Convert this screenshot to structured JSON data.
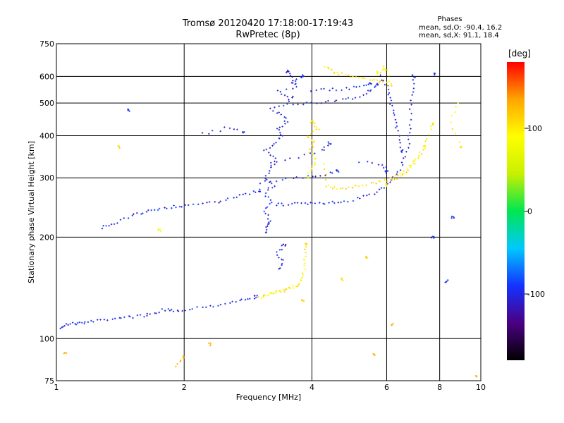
{
  "header": {
    "title": "Tromsø 20120420 17:18:00-17:19:43",
    "subtitle": "RwPretec (8p)",
    "phases_title": "Phases",
    "phases_o": "mean, sd,O: -90.4, 16.2",
    "phases_x": "mean, sd,X:  91.1, 18.4"
  },
  "chart_data": {
    "type": "scatter",
    "title": "Tromsø 20120420 17:18:00-17:19:43",
    "subtitle": "RwPretec (8p)",
    "xlabel": "Frequency [MHz]",
    "ylabel": "Stationary phase Virtual Height [km]",
    "x_scale": "log",
    "y_scale": "log",
    "xlim": [
      1,
      10
    ],
    "ylim": [
      75,
      750
    ],
    "x_ticks": [
      1,
      2,
      4,
      6,
      8,
      10
    ],
    "y_ticks": [
      75,
      100,
      200,
      300,
      400,
      500,
      600,
      750
    ],
    "grid": true,
    "colorbar": {
      "label": "[deg]",
      "range": [
        -180,
        180
      ],
      "ticks": [
        100,
        0,
        -100
      ],
      "colors": [
        "#000000",
        "#4b0082",
        "#1432ff",
        "#00c8ff",
        "#00e650",
        "#c8f000",
        "#ffff00",
        "#ffa500",
        "#ff0000"
      ]
    },
    "series": [
      {
        "name": "O",
        "points": [
          [
            1.03,
            108
          ],
          [
            1.05,
            110
          ],
          [
            1.1,
            111
          ],
          [
            1.15,
            111
          ],
          [
            1.2,
            112
          ],
          [
            1.3,
            114
          ],
          [
            1.4,
            115
          ],
          [
            1.5,
            116
          ],
          [
            1.6,
            117
          ],
          [
            1.7,
            119
          ],
          [
            1.8,
            122
          ],
          [
            1.9,
            121
          ],
          [
            2.0,
            122
          ],
          [
            2.2,
            124
          ],
          [
            2.4,
            126
          ],
          [
            2.6,
            128
          ],
          [
            2.8,
            131
          ],
          [
            2.95,
            133
          ],
          [
            1.28,
            214
          ],
          [
            1.35,
            218
          ],
          [
            1.45,
            226
          ],
          [
            1.55,
            234
          ],
          [
            1.65,
            240
          ],
          [
            1.75,
            243
          ],
          [
            1.9,
            247
          ],
          [
            2.0,
            248
          ],
          [
            2.2,
            250
          ],
          [
            2.4,
            254
          ],
          [
            2.6,
            262
          ],
          [
            2.8,
            268
          ],
          [
            3.0,
            275
          ],
          [
            2.2,
            405
          ],
          [
            2.5,
            420
          ],
          [
            2.75,
            412
          ],
          [
            3.1,
            205
          ],
          [
            3.15,
            215
          ],
          [
            3.2,
            225
          ],
          [
            3.1,
            240
          ],
          [
            3.2,
            255
          ],
          [
            3.1,
            270
          ],
          [
            3.25,
            285
          ],
          [
            3.1,
            300
          ],
          [
            3.2,
            320
          ],
          [
            3.3,
            340
          ],
          [
            3.1,
            360
          ],
          [
            3.25,
            380
          ],
          [
            3.4,
            400
          ],
          [
            3.3,
            420
          ],
          [
            3.5,
            440
          ],
          [
            3.4,
            460
          ],
          [
            3.2,
            480
          ],
          [
            3.5,
            500
          ],
          [
            3.6,
            520
          ],
          [
            3.3,
            540
          ],
          [
            3.7,
            560
          ],
          [
            3.6,
            585
          ],
          [
            3.5,
            620
          ],
          [
            3.3,
            250
          ],
          [
            3.5,
            250
          ],
          [
            3.8,
            251
          ],
          [
            4.0,
            252
          ],
          [
            4.3,
            253
          ],
          [
            4.6,
            254
          ],
          [
            5.0,
            258
          ],
          [
            5.4,
            265
          ],
          [
            5.8,
            275
          ],
          [
            6.1,
            290
          ],
          [
            6.4,
            310
          ],
          [
            6.6,
            340
          ],
          [
            6.75,
            380
          ],
          [
            6.8,
            420
          ],
          [
            6.85,
            480
          ],
          [
            6.9,
            540
          ],
          [
            6.95,
            600
          ],
          [
            3.0,
            290
          ],
          [
            3.4,
            295
          ],
          [
            3.8,
            300
          ],
          [
            4.2,
            305
          ],
          [
            4.6,
            315
          ],
          [
            3.2,
            330
          ],
          [
            3.7,
            345
          ],
          [
            4.2,
            360
          ],
          [
            4.4,
            380
          ],
          [
            3.6,
            495
          ],
          [
            4.0,
            500
          ],
          [
            4.4,
            505
          ],
          [
            4.8,
            512
          ],
          [
            5.2,
            525
          ],
          [
            5.5,
            545
          ],
          [
            5.7,
            570
          ],
          [
            4.0,
            545
          ],
          [
            4.4,
            547
          ],
          [
            4.8,
            552
          ],
          [
            5.2,
            560
          ],
          [
            5.5,
            570
          ],
          [
            3.6,
            575
          ],
          [
            3.8,
            600
          ],
          [
            5.8,
            600
          ],
          [
            6.0,
            560
          ],
          [
            6.1,
            520
          ],
          [
            6.2,
            480
          ],
          [
            6.3,
            440
          ],
          [
            6.4,
            400
          ],
          [
            6.5,
            360
          ],
          [
            3.35,
            160
          ],
          [
            3.4,
            170
          ],
          [
            3.3,
            180
          ],
          [
            3.45,
            190
          ],
          [
            1.48,
            475
          ],
          [
            5.2,
            335
          ],
          [
            5.9,
            328
          ],
          [
            6.0,
            312
          ],
          [
            7.8,
            610
          ],
          [
            8.3,
            148
          ],
          [
            7.7,
            200
          ],
          [
            8.6,
            230
          ]
        ]
      },
      {
        "name": "X",
        "points": [
          [
            3.0,
            132
          ],
          [
            3.1,
            134
          ],
          [
            3.2,
            136
          ],
          [
            3.3,
            137
          ],
          [
            3.4,
            138
          ],
          [
            3.5,
            140
          ],
          [
            3.6,
            142
          ],
          [
            3.7,
            145
          ],
          [
            3.8,
            150
          ],
          [
            3.83,
            160
          ],
          [
            3.85,
            175
          ],
          [
            3.87,
            190
          ],
          [
            3.8,
            130
          ],
          [
            3.9,
            300
          ],
          [
            4.0,
            320
          ],
          [
            4.1,
            340
          ],
          [
            3.95,
            360
          ],
          [
            4.05,
            380
          ],
          [
            3.9,
            400
          ],
          [
            4.15,
            420
          ],
          [
            4.0,
            440
          ],
          [
            4.3,
            330
          ],
          [
            4.3,
            285
          ],
          [
            4.5,
            280
          ],
          [
            4.8,
            278
          ],
          [
            5.1,
            282
          ],
          [
            5.5,
            288
          ],
          [
            5.8,
            292
          ],
          [
            6.2,
            300
          ],
          [
            6.5,
            310
          ],
          [
            6.9,
            330
          ],
          [
            7.2,
            355
          ],
          [
            7.5,
            395
          ],
          [
            7.7,
            435
          ],
          [
            6.0,
            285
          ],
          [
            4.3,
            640
          ],
          [
            4.5,
            620
          ],
          [
            4.7,
            610
          ],
          [
            5.0,
            600
          ],
          [
            5.3,
            595
          ],
          [
            5.6,
            585
          ],
          [
            5.9,
            575
          ],
          [
            6.2,
            565
          ],
          [
            5.9,
            645
          ],
          [
            6.0,
            630
          ],
          [
            5.7,
            615
          ],
          [
            6.2,
            295
          ],
          [
            6.5,
            305
          ],
          [
            6.8,
            320
          ],
          [
            7.1,
            340
          ],
          [
            7.4,
            370
          ],
          [
            1.4,
            370
          ],
          [
            1.75,
            210
          ],
          [
            1.9,
            82
          ],
          [
            2.0,
            88
          ],
          [
            2.3,
            96
          ],
          [
            4.7,
            150
          ],
          [
            5.4,
            175
          ],
          [
            5.6,
            90
          ],
          [
            6.2,
            110
          ],
          [
            9.7,
            77
          ],
          [
            8.8,
            500
          ],
          [
            8.5,
            440
          ],
          [
            9.0,
            370
          ],
          [
            1.05,
            90
          ]
        ]
      }
    ]
  },
  "colors": {
    "frame": "#000000",
    "grid": "#000000",
    "background": "#ffffff"
  }
}
